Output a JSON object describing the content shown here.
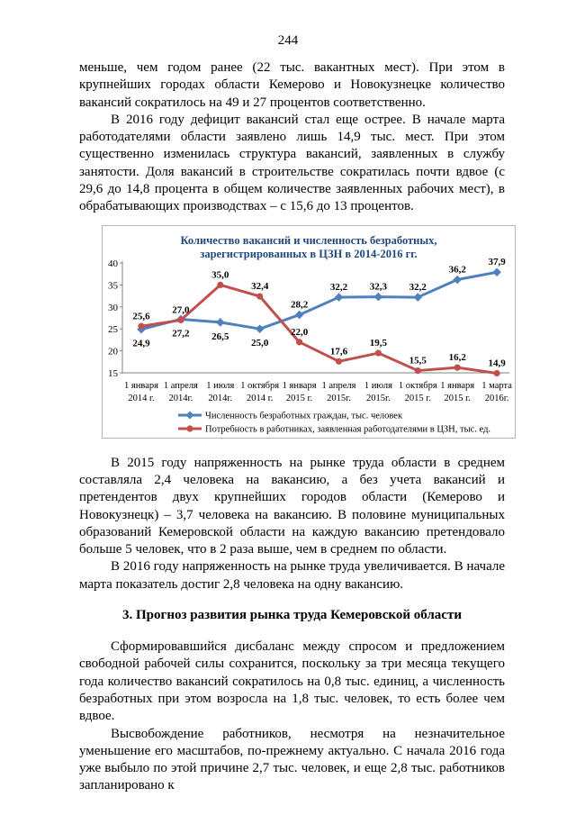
{
  "doc": {
    "page_number": "244",
    "p1": "меньше, чем годом ранее (22 тыс. вакантных мест). При этом в крупнейших городах области Кемерово и Новокузнецке количество вакансий сократилось на 49 и 27 процентов соответственно.",
    "p2": "В 2016 году дефицит вакансий стал еще острее. В начале марта работодателями области заявлено лишь 14,9 тыс. мест. При этом существенно изменилась структура вакансий, заявленных в службу занятости. Доля вакансий в строительстве сократилась почти вдвое (с 29,6 до 14,8 процента в общем количестве заявленных рабочих мест), в обрабатывающих производствах – с 15,6 до 13 процентов.",
    "p3": "В 2015 году напряженность на рынке труда области в среднем составляла 2,4 человека на вакансию, а без учета вакансий и претендентов двух крупнейших городов области (Кемерово и Новокузнецк) – 3,7 человека на вакансию. В половине муниципальных образований Кемеровской области на каждую вакансию претендовало больше 5 человек, что в 2 раза выше, чем в среднем по области.",
    "p4": "В 2016 году напряженность на рынке труда увеличивается. В начале марта показатель достиг 2,8 человека на одну вакансию.",
    "heading": "3. Прогноз развития рынка труда Кемеровской области",
    "p5": "Сформировавшийся дисбаланс между спросом и предложением свободной рабочей силы сохранится, поскольку за три месяца текущего года количество вакансий сократилось на 0,8 тыс. единиц, а численность безработных при этом возросла на 1,8 тыс. человек, то есть более чем вдвое.",
    "p6": "Высвобождение работников, несмотря на незначительное уменьшение его масштабов, по-прежнему актуально. С начала 2016 года уже выбыло по этой причине 2,7 тыс. человек, и еще 2,8 тыс. работников запланировано к"
  },
  "chart_data": {
    "type": "line",
    "title_lines": [
      "Количество вакансий и численность безработных,",
      "зарегистрированных в ЦЗН в 2014-2016 гг."
    ],
    "title_color": "#1F497D",
    "axis_color": "#808080",
    "ylim": [
      15,
      40
    ],
    "yticks": [
      40,
      35,
      30,
      25,
      20,
      15
    ],
    "grid": false,
    "legend_position": "bottom",
    "categories": [
      [
        "1 января",
        "2014 г."
      ],
      [
        "1 апреля",
        "2014г."
      ],
      [
        "1 июля",
        "2014г."
      ],
      [
        "1 октября",
        "2014 г."
      ],
      [
        "1 января",
        "2015 г."
      ],
      [
        "1 апреля",
        "2015г."
      ],
      [
        "1 июля",
        "2015г."
      ],
      [
        "1 октября",
        "2015 г."
      ],
      [
        "1 января",
        "2015 г."
      ],
      [
        "1 марта",
        "2016г."
      ]
    ],
    "series": [
      {
        "name": "Численность безработных граждан, тыс. человек",
        "color": "#4F81BD",
        "marker": "diamond",
        "values": [
          24.9,
          27.2,
          26.5,
          25.0,
          28.2,
          32.2,
          32.3,
          32.2,
          36.2,
          37.9
        ],
        "labels": [
          "24,9",
          "27,2",
          "26,5",
          "25,0",
          "28,2",
          "32,2",
          "32,3",
          "32,2",
          "36,2",
          "37,9"
        ],
        "label_side": [
          "below",
          "below",
          "below",
          "below",
          "above",
          "above",
          "above",
          "above",
          "above",
          "above"
        ]
      },
      {
        "name": "Потребность в работниках, заявленная работодателями в ЦЗН, тыс. ед.",
        "color": "#C0504D",
        "marker": "circle",
        "values": [
          25.6,
          27.0,
          35.0,
          32.4,
          22.0,
          17.6,
          19.5,
          15.5,
          16.2,
          14.9
        ],
        "labels": [
          "25,6",
          "27,0",
          "35,0",
          "32,4",
          "22,0",
          "17,6",
          "19,5",
          "15,5",
          "16,2",
          "14,9"
        ],
        "label_side": [
          "above",
          "above",
          "above",
          "above",
          "above",
          "above",
          "above",
          "above",
          "above",
          "above"
        ]
      }
    ]
  }
}
